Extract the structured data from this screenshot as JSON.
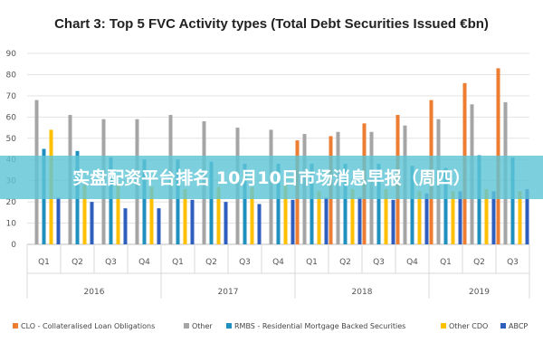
{
  "chart_data": {
    "type": "bar",
    "title": "Chart 3: Top 5 FVC Activity types (Total Debt Securities Issued €bn)",
    "ylim": [
      0,
      90
    ],
    "yticks": [
      0,
      10,
      20,
      30,
      40,
      50,
      60,
      70,
      80,
      90
    ],
    "grid": true,
    "legend_position": "bottom",
    "categories": [
      "Q1",
      "Q2",
      "Q3",
      "Q4",
      "Q1",
      "Q2",
      "Q3",
      "Q4",
      "Q1",
      "Q2",
      "Q3",
      "Q4",
      "Q1",
      "Q2",
      "Q3"
    ],
    "year_groups": [
      {
        "label": "2016",
        "count": 4
      },
      {
        "label": "2017",
        "count": 4
      },
      {
        "label": "2018",
        "count": 4
      },
      {
        "label": "2019",
        "count": 3
      }
    ],
    "series": [
      {
        "name": "CLO - Collateralised Loan Obligations",
        "color": "#ed7d31",
        "values": [
          0,
          0,
          0,
          0,
          0,
          0,
          0,
          0,
          49,
          51,
          57,
          61,
          68,
          76,
          83
        ]
      },
      {
        "name": "Other",
        "color": "#a5a5a5",
        "values": [
          68,
          61,
          59,
          59,
          61,
          58,
          55,
          54,
          52,
          53,
          53,
          56,
          59,
          66,
          67
        ]
      },
      {
        "name": "RMBS - Residential Mortgage Backed Securities",
        "color": "#1f8fbf",
        "values": [
          45,
          44,
          41,
          40,
          40,
          39,
          38,
          38,
          38,
          38,
          38,
          37,
          36,
          42,
          41
        ]
      },
      {
        "name": "Other CDO",
        "color": "#ffc000",
        "values": [
          54,
          28,
          29,
          27,
          26,
          27,
          27,
          28,
          25,
          26,
          26,
          25,
          25,
          26,
          25
        ]
      },
      {
        "name": "ABCP",
        "color": "#2e5fbf",
        "values": [
          22,
          20,
          17,
          17,
          21,
          20,
          19,
          21,
          22,
          22,
          21,
          24,
          25,
          25,
          26
        ]
      }
    ]
  },
  "overlay": {
    "headline": "实盘配资平台排名  10月10日市场消息早报（周四）"
  }
}
